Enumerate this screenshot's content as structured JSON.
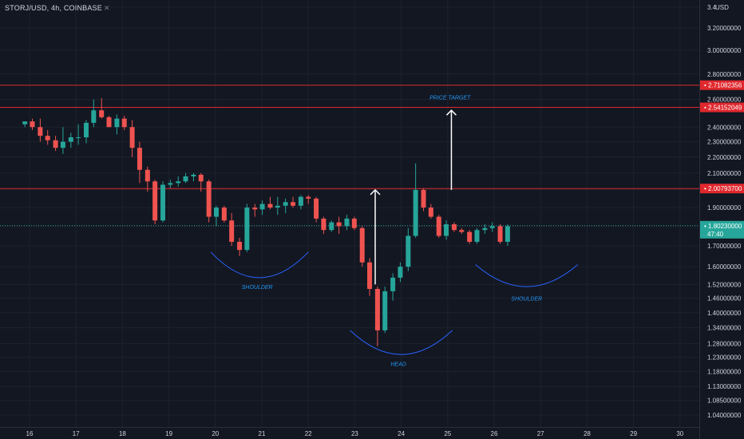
{
  "header": {
    "symbol_title": "STORJ/USD, 4h, COINBASE",
    "close_glyph": "✕",
    "currency": "USD"
  },
  "chart_data": {
    "type": "candlestick",
    "title": "STORJ/USD, 4h, COINBASE",
    "y_scale": "log",
    "ylim": [
      1.0,
      3.4
    ],
    "x_ticks": [
      "16",
      "17",
      "18",
      "19",
      "20",
      "21",
      "22",
      "23",
      "24",
      "25",
      "26",
      "27",
      "28",
      "29",
      "30"
    ],
    "y_ticks": [
      "3.4",
      "3.20000000",
      "3.00000000",
      "2.80000000",
      "2.60000000",
      "2.40000000",
      "2.30000000",
      "2.20000000",
      "2.10000000",
      "2.00000000",
      "1.90000000",
      "1.80000000",
      "1.70000000",
      "1.60000000",
      "1.52000000",
      "1.46000000",
      "1.40000000",
      "1.34000000",
      "1.28000000",
      "1.23000000",
      "1.18000000",
      "1.13000000",
      "1.08500000",
      "1.04000000"
    ],
    "horizontal_levels": [
      {
        "value": 2.71082356,
        "label": "2.71082356",
        "color": "#e0282e"
      },
      {
        "value": 2.54152049,
        "label": "2.54152049",
        "color": "#e0282e"
      },
      {
        "value": 2.007937,
        "label": "2.00793700",
        "color": "#e0282e"
      },
      {
        "value": 1.8023,
        "label": "1.80230000",
        "sublabel": "47:40",
        "color": "#26a69a",
        "style": "dotted"
      }
    ],
    "candles": [
      {
        "t": 15.9,
        "o": 2.42,
        "h": 2.44,
        "l": 2.4,
        "c": 2.44
      },
      {
        "t": 16.06,
        "o": 2.44,
        "h": 2.46,
        "l": 2.38,
        "c": 2.4
      },
      {
        "t": 16.23,
        "o": 2.4,
        "h": 2.46,
        "l": 2.3,
        "c": 2.34
      },
      {
        "t": 16.39,
        "o": 2.34,
        "h": 2.38,
        "l": 2.28,
        "c": 2.31
      },
      {
        "t": 16.56,
        "o": 2.31,
        "h": 2.34,
        "l": 2.24,
        "c": 2.26
      },
      {
        "t": 16.72,
        "o": 2.26,
        "h": 2.4,
        "l": 2.22,
        "c": 2.3
      },
      {
        "t": 16.89,
        "o": 2.3,
        "h": 2.36,
        "l": 2.26,
        "c": 2.33
      },
      {
        "t": 17.05,
        "o": 2.33,
        "h": 2.42,
        "l": 2.28,
        "c": 2.33
      },
      {
        "t": 17.22,
        "o": 2.33,
        "h": 2.45,
        "l": 2.29,
        "c": 2.43
      },
      {
        "t": 17.38,
        "o": 2.43,
        "h": 2.6,
        "l": 2.4,
        "c": 2.52
      },
      {
        "t": 17.55,
        "o": 2.52,
        "h": 2.61,
        "l": 2.46,
        "c": 2.47
      },
      {
        "t": 17.71,
        "o": 2.47,
        "h": 2.48,
        "l": 2.4,
        "c": 2.4
      },
      {
        "t": 17.88,
        "o": 2.4,
        "h": 2.49,
        "l": 2.35,
        "c": 2.46
      },
      {
        "t": 18.04,
        "o": 2.46,
        "h": 2.48,
        "l": 2.38,
        "c": 2.4
      },
      {
        "t": 18.21,
        "o": 2.4,
        "h": 2.45,
        "l": 2.2,
        "c": 2.26
      },
      {
        "t": 18.37,
        "o": 2.26,
        "h": 2.3,
        "l": 2.04,
        "c": 2.12
      },
      {
        "t": 18.54,
        "o": 2.12,
        "h": 2.14,
        "l": 1.99,
        "c": 2.05
      },
      {
        "t": 18.7,
        "o": 2.05,
        "h": 2.06,
        "l": 1.81,
        "c": 1.83
      },
      {
        "t": 18.87,
        "o": 1.83,
        "h": 2.05,
        "l": 1.82,
        "c": 2.03
      },
      {
        "t": 19.03,
        "o": 2.03,
        "h": 2.06,
        "l": 2.01,
        "c": 2.04
      },
      {
        "t": 19.2,
        "o": 2.04,
        "h": 2.08,
        "l": 2.02,
        "c": 2.05
      },
      {
        "t": 19.36,
        "o": 2.05,
        "h": 2.1,
        "l": 2.04,
        "c": 2.08
      },
      {
        "t": 19.53,
        "o": 2.08,
        "h": 2.1,
        "l": 2.05,
        "c": 2.09
      },
      {
        "t": 19.69,
        "o": 2.09,
        "h": 2.1,
        "l": 1.99,
        "c": 2.05
      },
      {
        "t": 19.86,
        "o": 2.05,
        "h": 2.06,
        "l": 1.82,
        "c": 1.85
      },
      {
        "t": 20.02,
        "o": 1.85,
        "h": 1.91,
        "l": 1.8,
        "c": 1.9
      },
      {
        "t": 20.19,
        "o": 1.9,
        "h": 1.91,
        "l": 1.82,
        "c": 1.83
      },
      {
        "t": 20.35,
        "o": 1.83,
        "h": 1.87,
        "l": 1.7,
        "c": 1.72
      },
      {
        "t": 20.52,
        "o": 1.72,
        "h": 1.74,
        "l": 1.65,
        "c": 1.68
      },
      {
        "t": 20.68,
        "o": 1.68,
        "h": 1.92,
        "l": 1.67,
        "c": 1.9
      },
      {
        "t": 20.85,
        "o": 1.9,
        "h": 1.92,
        "l": 1.85,
        "c": 1.89
      },
      {
        "t": 21.01,
        "o": 1.89,
        "h": 1.94,
        "l": 1.86,
        "c": 1.92
      },
      {
        "t": 21.18,
        "o": 1.92,
        "h": 1.96,
        "l": 1.89,
        "c": 1.9
      },
      {
        "t": 21.34,
        "o": 1.9,
        "h": 1.96,
        "l": 1.86,
        "c": 1.91
      },
      {
        "t": 21.51,
        "o": 1.91,
        "h": 1.95,
        "l": 1.87,
        "c": 1.93
      },
      {
        "t": 21.67,
        "o": 1.93,
        "h": 1.96,
        "l": 1.9,
        "c": 1.91
      },
      {
        "t": 21.84,
        "o": 1.91,
        "h": 1.97,
        "l": 1.89,
        "c": 1.96
      },
      {
        "t": 22.0,
        "o": 1.96,
        "h": 1.97,
        "l": 1.92,
        "c": 1.95
      },
      {
        "t": 22.17,
        "o": 1.95,
        "h": 1.96,
        "l": 1.82,
        "c": 1.84
      },
      {
        "t": 22.33,
        "o": 1.84,
        "h": 1.85,
        "l": 1.76,
        "c": 1.78
      },
      {
        "t": 22.5,
        "o": 1.78,
        "h": 1.83,
        "l": 1.77,
        "c": 1.82
      },
      {
        "t": 22.66,
        "o": 1.82,
        "h": 1.85,
        "l": 1.76,
        "c": 1.8
      },
      {
        "t": 22.83,
        "o": 1.8,
        "h": 1.86,
        "l": 1.78,
        "c": 1.84
      },
      {
        "t": 22.99,
        "o": 1.84,
        "h": 1.85,
        "l": 1.78,
        "c": 1.79
      },
      {
        "t": 23.16,
        "o": 1.79,
        "h": 1.8,
        "l": 1.6,
        "c": 1.62
      },
      {
        "t": 23.32,
        "o": 1.62,
        "h": 1.64,
        "l": 1.47,
        "c": 1.5
      },
      {
        "t": 23.49,
        "o": 1.5,
        "h": 1.51,
        "l": 1.27,
        "c": 1.33
      },
      {
        "t": 23.65,
        "o": 1.33,
        "h": 1.51,
        "l": 1.32,
        "c": 1.49
      },
      {
        "t": 23.82,
        "o": 1.49,
        "h": 1.57,
        "l": 1.45,
        "c": 1.55
      },
      {
        "t": 23.98,
        "o": 1.55,
        "h": 1.62,
        "l": 1.53,
        "c": 1.6
      },
      {
        "t": 24.15,
        "o": 1.6,
        "h": 1.79,
        "l": 1.58,
        "c": 1.75
      },
      {
        "t": 24.31,
        "o": 1.75,
        "h": 2.16,
        "l": 1.74,
        "c": 2.0
      },
      {
        "t": 24.48,
        "o": 2.0,
        "h": 2.01,
        "l": 1.88,
        "c": 1.9
      },
      {
        "t": 24.64,
        "o": 1.9,
        "h": 1.92,
        "l": 1.84,
        "c": 1.85
      },
      {
        "t": 24.81,
        "o": 1.85,
        "h": 1.86,
        "l": 1.74,
        "c": 1.75
      },
      {
        "t": 24.97,
        "o": 1.75,
        "h": 1.83,
        "l": 1.73,
        "c": 1.81
      },
      {
        "t": 25.14,
        "o": 1.81,
        "h": 1.82,
        "l": 1.77,
        "c": 1.78
      },
      {
        "t": 25.3,
        "o": 1.78,
        "h": 1.79,
        "l": 1.76,
        "c": 1.77
      },
      {
        "t": 25.47,
        "o": 1.77,
        "h": 1.78,
        "l": 1.71,
        "c": 1.72
      },
      {
        "t": 25.63,
        "o": 1.72,
        "h": 1.79,
        "l": 1.71,
        "c": 1.78
      },
      {
        "t": 25.8,
        "o": 1.78,
        "h": 1.81,
        "l": 1.76,
        "c": 1.79
      },
      {
        "t": 25.96,
        "o": 1.79,
        "h": 1.82,
        "l": 1.77,
        "c": 1.8
      },
      {
        "t": 26.13,
        "o": 1.8,
        "h": 1.81,
        "l": 1.71,
        "c": 1.72
      },
      {
        "t": 26.29,
        "o": 1.72,
        "h": 1.81,
        "l": 1.7,
        "c": 1.8
      }
    ],
    "pattern_arcs": [
      {
        "name": "left-shoulder-arc",
        "t0": 19.9,
        "t1": 22.0,
        "y_end": 1.67,
        "y_bottom": 1.55
      },
      {
        "name": "head-arc",
        "t0": 22.9,
        "t1": 25.1,
        "y_end": 1.33,
        "y_bottom": 1.24
      },
      {
        "name": "right-shoulder-arc",
        "t0": 25.6,
        "t1": 27.8,
        "y_end": 1.61,
        "y_bottom": 1.51
      }
    ],
    "arrows": [
      {
        "name": "neckline-arrow",
        "t": 23.44,
        "y0": 1.52,
        "y1": 2.0
      },
      {
        "name": "target-arrow",
        "t": 25.08,
        "y0": 2.0,
        "y1": 2.52
      }
    ],
    "annotations": [
      {
        "name": "shoulder-label-left",
        "text": "SHOULDER",
        "t": 20.9,
        "y": 1.5
      },
      {
        "name": "head-label",
        "text": "HEAD",
        "t": 23.94,
        "y": 1.2
      },
      {
        "name": "shoulder-label-right",
        "text": "SHOULDER",
        "t": 26.7,
        "y": 1.45
      },
      {
        "name": "price-target-label",
        "text": "PRICE TARGET",
        "t": 25.05,
        "y": 2.6
      }
    ],
    "colors": {
      "up": "#26a69a",
      "down": "#ef5350",
      "level": "#e0282e",
      "pattern": "#2962ff",
      "annotation": "#2196f3",
      "arrow": "#ffffff",
      "background": "#131722",
      "grid": "#1e222d",
      "axis_text": "#d1d4dc"
    }
  }
}
